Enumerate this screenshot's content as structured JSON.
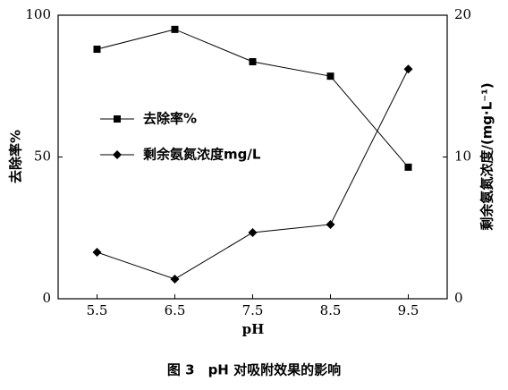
{
  "chart_data": {
    "type": "line",
    "caption": "图 3　pH 对吸附效果的影响",
    "xlabel": "pH",
    "ylabel": "去除率%",
    "y2label": "剩余氨氮浓度/(mg·L⁻¹)",
    "x": [
      5.5,
      6.5,
      7.5,
      8.5,
      9.5
    ],
    "xlim": [
      5,
      10
    ],
    "xticks": [
      5.5,
      6.5,
      7.5,
      8.5,
      9.5
    ],
    "ylim": [
      0,
      100
    ],
    "yticks": [
      0,
      50,
      100
    ],
    "y2lim": [
      0,
      20
    ],
    "y2ticks": [
      0,
      10,
      20
    ],
    "series": [
      {
        "name": "去除率%",
        "color": "#000000",
        "marker": "square",
        "values": [
          88.0,
          95.0,
          83.6,
          78.5,
          46.4
        ]
      },
      {
        "name": "剩余氨氮浓度mg/L",
        "color": "#000000",
        "marker": "diamond",
        "axis": "y2",
        "values": [
          3.28,
          1.39,
          4.67,
          5.24,
          16.2
        ]
      }
    ]
  }
}
